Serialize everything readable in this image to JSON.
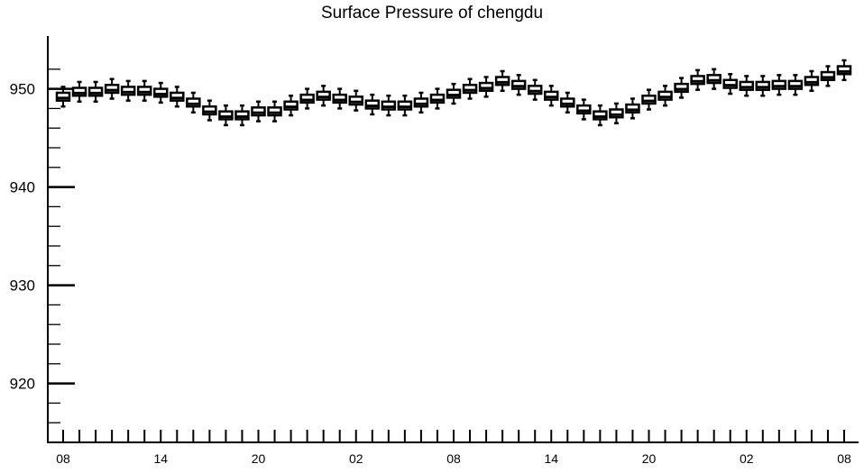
{
  "chart_data": {
    "type": "boxplot",
    "title": "Surface Pressure of chengdu",
    "xlabel": "",
    "ylabel": "",
    "ylim": [
      914,
      950
    ],
    "y_ticks": [
      920,
      930,
      940,
      950
    ],
    "y_tick_labels": [
      "920",
      "930",
      "940",
      "950"
    ],
    "x_tick_labels": [
      "08",
      "14",
      "20",
      "02",
      "08",
      "14",
      "20",
      "02",
      "08"
    ],
    "x_tick_label_indices": [
      0,
      6,
      12,
      18,
      24,
      30,
      36,
      42,
      48
    ],
    "grid": false,
    "series": [
      {
        "type": "box",
        "median": [
          949.2,
          949.7,
          949.7,
          950.0,
          949.8,
          949.8,
          949.6,
          949.2,
          948.6,
          947.8,
          947.3,
          947.3,
          947.7,
          947.7,
          948.3,
          949.0,
          949.3,
          949.0,
          948.8,
          948.4,
          948.3,
          948.3,
          948.6,
          949.0,
          949.5,
          950.0,
          950.2,
          950.8,
          950.4,
          949.9,
          949.3,
          948.6,
          947.9,
          947.3,
          947.5,
          948.0,
          948.9,
          949.3,
          950.1,
          950.9,
          951.0,
          950.5,
          950.3,
          950.3,
          950.4,
          950.4,
          950.8,
          951.3,
          951.9
        ]
      }
    ]
  }
}
